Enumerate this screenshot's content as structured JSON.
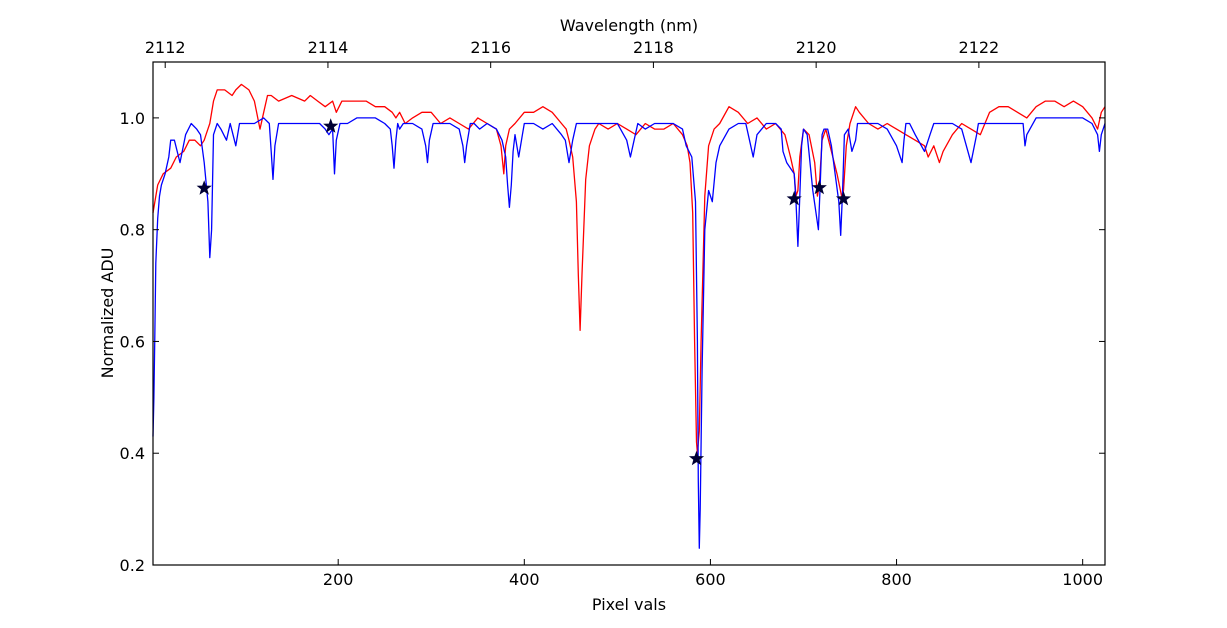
{
  "chart_data": {
    "type": "line",
    "title": "",
    "xlabel": "Pixel vals",
    "ylabel": "Normalized ADU",
    "top_xlabel": "Wavelength (nm)",
    "xlim": [
      1,
      1024
    ],
    "ylim": [
      0.2,
      1.1
    ],
    "x_ticks": [
      200,
      400,
      600,
      800,
      1000
    ],
    "x_tick_labels": [
      "200",
      "400",
      "600",
      "800",
      "1000"
    ],
    "y_ticks": [
      0.2,
      0.4,
      0.6,
      0.8,
      1.0
    ],
    "y_tick_labels": [
      "0.2",
      "0.4",
      "0.6",
      "0.8",
      "1.0"
    ],
    "top_axis": {
      "wavelength_at_xlim": [
        2111.85,
        2123.55
      ],
      "ticks": [
        2112,
        2114,
        2116,
        2118,
        2120,
        2122
      ],
      "tick_labels": [
        "2112",
        "2114",
        "2116",
        "2118",
        "2120",
        "2122"
      ]
    },
    "grid": false,
    "legend": "none",
    "series": [
      {
        "color": "#ff0000",
        "x": [
          1,
          6,
          12,
          20,
          26,
          34,
          40,
          46,
          52,
          56,
          58,
          62,
          66,
          70,
          78,
          86,
          90,
          96,
          104,
          110,
          116,
          120,
          124,
          128,
          136,
          150,
          164,
          170,
          178,
          186,
          194,
          198,
          204,
          212,
          220,
          230,
          240,
          250,
          258,
          262,
          266,
          272,
          280,
          290,
          300,
          310,
          320,
          330,
          340,
          350,
          360,
          370,
          375,
          378,
          380,
          384,
          390,
          400,
          410,
          420,
          430,
          440,
          445,
          448,
          452,
          456,
          458,
          460,
          462,
          466,
          470,
          476,
          480,
          490,
          500,
          510,
          520,
          530,
          540,
          550,
          560,
          570,
          575,
          578,
          581,
          583,
          585,
          586,
          588,
          590,
          594,
          598,
          604,
          610,
          620,
          630,
          640,
          650,
          660,
          670,
          680,
          686,
          690,
          692,
          694,
          696,
          700,
          706,
          712,
          715,
          717,
          720,
          724,
          730,
          736,
          741,
          743,
          746,
          750,
          756,
          760,
          770,
          780,
          790,
          800,
          810,
          820,
          830,
          834,
          840,
          846,
          850,
          860,
          870,
          880,
          890,
          900,
          910,
          920,
          930,
          940,
          950,
          960,
          970,
          980,
          990,
          1000,
          1010,
          1016,
          1020,
          1024
        ],
        "y": [
          0.83,
          0.88,
          0.9,
          0.91,
          0.93,
          0.94,
          0.96,
          0.96,
          0.95,
          0.96,
          0.97,
          0.99,
          1.03,
          1.05,
          1.05,
          1.04,
          1.05,
          1.06,
          1.05,
          1.03,
          0.98,
          1.01,
          1.04,
          1.04,
          1.03,
          1.04,
          1.03,
          1.04,
          1.03,
          1.02,
          1.03,
          1.01,
          1.03,
          1.03,
          1.03,
          1.03,
          1.02,
          1.02,
          1.01,
          1.0,
          1.01,
          0.99,
          1.0,
          1.01,
          1.01,
          0.99,
          1.0,
          0.99,
          0.98,
          1.0,
          0.99,
          0.98,
          0.95,
          0.9,
          0.95,
          0.98,
          0.99,
          1.01,
          1.01,
          1.02,
          1.01,
          0.99,
          0.98,
          0.96,
          0.93,
          0.85,
          0.72,
          0.62,
          0.72,
          0.89,
          0.95,
          0.98,
          0.99,
          0.98,
          0.99,
          0.98,
          0.97,
          0.99,
          0.98,
          0.98,
          0.99,
          0.97,
          0.95,
          0.92,
          0.83,
          0.6,
          0.42,
          0.4,
          0.44,
          0.6,
          0.86,
          0.95,
          0.98,
          0.99,
          1.02,
          1.01,
          0.99,
          1.0,
          0.98,
          0.99,
          0.97,
          0.93,
          0.9,
          0.86,
          0.87,
          0.93,
          0.98,
          0.97,
          0.92,
          0.86,
          0.88,
          0.96,
          0.98,
          0.94,
          0.9,
          0.86,
          0.87,
          0.95,
          0.99,
          1.02,
          1.01,
          0.99,
          0.98,
          0.99,
          0.98,
          0.97,
          0.96,
          0.95,
          0.93,
          0.95,
          0.92,
          0.94,
          0.97,
          0.99,
          0.98,
          0.97,
          1.01,
          1.02,
          1.02,
          1.01,
          1.0,
          1.02,
          1.03,
          1.03,
          1.02,
          1.03,
          1.02,
          1.0,
          0.98,
          1.01,
          1.02
        ]
      },
      {
        "color": "#0000ff",
        "x": [
          1,
          2,
          3,
          4,
          6,
          8,
          10,
          14,
          18,
          20,
          24,
          30,
          36,
          42,
          48,
          52,
          56,
          60,
          62,
          64,
          66,
          70,
          74,
          80,
          84,
          90,
          94,
          100,
          110,
          120,
          126,
          128,
          130,
          132,
          136,
          140,
          150,
          160,
          170,
          180,
          186,
          190,
          194,
          196,
          198,
          202,
          210,
          220,
          230,
          240,
          250,
          256,
          258,
          260,
          262,
          264,
          266,
          270,
          280,
          290,
          294,
          296,
          298,
          302,
          310,
          320,
          330,
          334,
          336,
          338,
          342,
          346,
          352,
          360,
          370,
          376,
          380,
          382,
          384,
          386,
          388,
          390,
          394,
          398,
          400,
          410,
          420,
          430,
          440,
          444,
          448,
          452,
          456,
          460,
          470,
          480,
          490,
          500,
          510,
          514,
          518,
          522,
          530,
          540,
          550,
          560,
          570,
          574,
          580,
          584,
          586,
          587,
          588,
          589,
          591,
          594,
          598,
          602,
          606,
          610,
          620,
          630,
          638,
          642,
          646,
          650,
          660,
          670,
          676,
          678,
          682,
          690,
          692,
          694,
          696,
          698,
          700,
          704,
          710,
          716,
          718,
          720,
          722,
          726,
          730,
          738,
          740,
          742,
          744,
          748,
          752,
          756,
          758,
          760,
          764,
          770,
          780,
          790,
          800,
          806,
          808,
          810,
          814,
          820,
          830,
          836,
          840,
          844,
          850,
          860,
          870,
          880,
          886,
          888,
          890,
          900,
          910,
          920,
          936,
          938,
          940,
          950,
          970,
          990,
          1000,
          1010,
          1016,
          1018,
          1020,
          1024
        ],
        "y": [
          0.43,
          0.5,
          0.62,
          0.74,
          0.82,
          0.86,
          0.88,
          0.9,
          0.93,
          0.96,
          0.96,
          0.92,
          0.97,
          0.99,
          0.98,
          0.97,
          0.92,
          0.85,
          0.75,
          0.8,
          0.97,
          0.99,
          0.98,
          0.96,
          0.99,
          0.95,
          0.99,
          0.99,
          0.99,
          1.0,
          0.99,
          0.94,
          0.89,
          0.95,
          0.99,
          0.99,
          0.99,
          0.99,
          0.99,
          0.99,
          0.98,
          0.97,
          0.98,
          0.9,
          0.96,
          0.99,
          0.99,
          1.0,
          1.0,
          1.0,
          0.99,
          0.98,
          0.95,
          0.91,
          0.96,
          0.99,
          0.98,
          0.99,
          0.99,
          0.98,
          0.95,
          0.92,
          0.96,
          0.99,
          0.99,
          0.99,
          0.98,
          0.95,
          0.92,
          0.95,
          0.99,
          0.99,
          0.98,
          0.99,
          0.98,
          0.96,
          0.93,
          0.88,
          0.84,
          0.88,
          0.94,
          0.97,
          0.93,
          0.97,
          0.99,
          0.99,
          0.98,
          0.99,
          0.97,
          0.96,
          0.92,
          0.96,
          0.99,
          0.99,
          0.99,
          0.99,
          0.99,
          0.99,
          0.96,
          0.93,
          0.96,
          0.99,
          0.98,
          0.99,
          0.99,
          0.99,
          0.98,
          0.95,
          0.93,
          0.85,
          0.6,
          0.35,
          0.23,
          0.3,
          0.55,
          0.8,
          0.87,
          0.85,
          0.92,
          0.95,
          0.98,
          0.99,
          0.99,
          0.96,
          0.93,
          0.97,
          0.99,
          0.99,
          0.98,
          0.94,
          0.92,
          0.9,
          0.85,
          0.77,
          0.86,
          0.95,
          0.98,
          0.97,
          0.87,
          0.8,
          0.88,
          0.97,
          0.98,
          0.98,
          0.95,
          0.85,
          0.79,
          0.87,
          0.97,
          0.98,
          0.94,
          0.96,
          0.99,
          0.99,
          0.99,
          0.99,
          0.99,
          0.98,
          0.95,
          0.92,
          0.96,
          0.99,
          0.99,
          0.97,
          0.94,
          0.97,
          0.99,
          0.99,
          0.99,
          0.99,
          0.98,
          0.92,
          0.97,
          0.99,
          0.99,
          0.99,
          0.99,
          0.99,
          0.99,
          0.95,
          0.97,
          1.0,
          1.0,
          1.0,
          1.0,
          0.99,
          0.97,
          0.94,
          0.97,
          0.99
        ]
      }
    ],
    "markers": {
      "symbol": "star",
      "color": "#000033",
      "x": [
        56,
        192,
        585,
        690,
        717,
        743
      ],
      "y": [
        0.874,
        0.985,
        0.39,
        0.855,
        0.875,
        0.855
      ]
    }
  }
}
